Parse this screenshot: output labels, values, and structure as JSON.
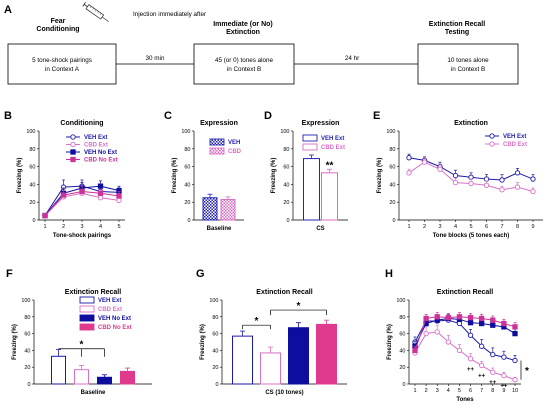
{
  "colors": {
    "veh_ext": "#1a1aa8",
    "cbd_ext": "#d970c8",
    "veh_no_ext": "#0d0d9e",
    "cbd_no_ext": "#cc3399",
    "veh": "#2323b0",
    "cbd": "#d86cc4",
    "pink_fill": "#e03a8f"
  },
  "panel_a": {
    "label": "A",
    "injection_note": "Injection immediately after",
    "syringe_icon": "syringe-icon",
    "stage1_title": "Fear\nConditioning",
    "stage1_box": "5 tone-shock pairings\nin Context A",
    "gap1": "30 min",
    "stage2_title": "Immediate (or No)\nExtinction",
    "stage2_box": "45 (or 0) tones alone\nin Context B",
    "gap2": "24 hr",
    "stage3_title": "Extinction Recall\nTesting",
    "stage3_box": "10 tones alone\nin Context B"
  },
  "chart_data": [
    {
      "panel": "B",
      "type": "line",
      "title": "Conditioning",
      "xlabel": "Tone-shock pairings",
      "ylabel": "Freezing (%)",
      "x": [
        1,
        2,
        3,
        4,
        5
      ],
      "ylim": [
        0,
        100
      ],
      "yticks": [
        0,
        20,
        40,
        60,
        80,
        100
      ],
      "legend": [
        "VEH Ext",
        "CBD Ext",
        "VEH No Ext",
        "CBD No Ext"
      ],
      "series": [
        {
          "name": "VEH Ext",
          "values": [
            5,
            37,
            38,
            32,
            31
          ],
          "err": [
            2,
            8,
            7,
            5,
            5
          ]
        },
        {
          "name": "CBD Ext",
          "values": [
            5,
            26,
            30,
            25,
            22
          ],
          "err": [
            2,
            5,
            5,
            5,
            4
          ]
        },
        {
          "name": "VEH No Ext",
          "values": [
            5,
            30,
            36,
            38,
            33
          ],
          "err": [
            2,
            6,
            6,
            6,
            5
          ]
        },
        {
          "name": "CBD No Ext",
          "values": [
            5,
            28,
            32,
            30,
            27
          ],
          "err": [
            2,
            5,
            6,
            5,
            5
          ]
        }
      ]
    },
    {
      "panel": "C",
      "type": "bar",
      "title": "Expression",
      "xlabel": "Baseline",
      "ylabel": "Freezing (%)",
      "ylim": [
        0,
        100
      ],
      "yticks": [
        0,
        20,
        40,
        60,
        80,
        100
      ],
      "legend": [
        "VEH",
        "CBD"
      ],
      "categories": [
        "VEH",
        "CBD"
      ],
      "values": [
        25,
        23
      ],
      "err": [
        4,
        3
      ]
    },
    {
      "panel": "D",
      "type": "bar",
      "title": "Expression",
      "xlabel": "CS",
      "ylabel": "Freezing (%)",
      "ylim": [
        0,
        100
      ],
      "yticks": [
        0,
        20,
        40,
        60,
        80,
        100
      ],
      "legend": [
        "VEH Ext",
        "CBD Ext"
      ],
      "categories": [
        "VEH Ext",
        "CBD Ext"
      ],
      "values": [
        69,
        53
      ],
      "err": [
        4,
        4
      ],
      "annotation": "**"
    },
    {
      "panel": "E",
      "type": "line",
      "title": "Extinction",
      "xlabel": "Tone blocks (5 tones each)",
      "ylabel": "Freezing (%)",
      "x": [
        1,
        2,
        3,
        4,
        5,
        6,
        7,
        8,
        9
      ],
      "ylim": [
        0,
        100
      ],
      "yticks": [
        0,
        20,
        40,
        60,
        80,
        100
      ],
      "legend": [
        "VEH Ext",
        "CBD Ext"
      ],
      "series": [
        {
          "name": "VEH Ext",
          "values": [
            70,
            67,
            60,
            50,
            48,
            46,
            45,
            53,
            46
          ],
          "err": [
            4,
            4,
            5,
            6,
            5,
            5,
            6,
            5,
            5
          ]
        },
        {
          "name": "CBD Ext",
          "values": [
            53,
            65,
            57,
            42,
            41,
            39,
            34,
            37,
            32
          ],
          "err": [
            4,
            5,
            6,
            5,
            5,
            5,
            4,
            5,
            4
          ]
        }
      ]
    },
    {
      "panel": "F",
      "type": "bar",
      "title": "Extinction Recall",
      "xlabel": "Baseline",
      "ylabel": "Freezing (%)",
      "ylim": [
        0,
        100
      ],
      "yticks": [
        0,
        20,
        40,
        60,
        80,
        100
      ],
      "legend": [
        "VEH Ext",
        "CBD Ext",
        "VEH No Ext",
        "CBD No Ext"
      ],
      "categories": [
        "VEH Ext",
        "CBD Ext",
        "VEH No Ext",
        "CBD No Ext"
      ],
      "values": [
        33,
        17,
        8,
        15
      ],
      "err": [
        8,
        5,
        3,
        4
      ],
      "annotation": "*"
    },
    {
      "panel": "G",
      "type": "bar",
      "title": "Extinction Recall",
      "xlabel": "CS (10 tones)",
      "ylabel": "Freezing (%)",
      "ylim": [
        0,
        100
      ],
      "yticks": [
        0,
        20,
        40,
        60,
        80,
        100
      ],
      "categories": [
        "VEH Ext",
        "CBD Ext",
        "VEH No Ext",
        "CBD No Ext"
      ],
      "values": [
        57,
        37,
        67,
        71
      ],
      "err": [
        6,
        7,
        6,
        5
      ],
      "annotations": [
        "*",
        "*"
      ]
    },
    {
      "panel": "H",
      "type": "line",
      "title": "Extinction Recall",
      "xlabel": "Tones",
      "ylabel": "Freezing (%)",
      "x": [
        1,
        2,
        3,
        4,
        5,
        6,
        7,
        8,
        9,
        10
      ],
      "ylim": [
        0,
        100
      ],
      "yticks": [
        0,
        20,
        40,
        60,
        80,
        100
      ],
      "series": [
        {
          "name": "VEH Ext",
          "values": [
            50,
            75,
            75,
            76,
            72,
            58,
            45,
            35,
            32,
            28
          ],
          "err": [
            6,
            5,
            5,
            5,
            6,
            7,
            8,
            8,
            7,
            6
          ]
        },
        {
          "name": "CBD Ext",
          "values": [
            37,
            60,
            62,
            50,
            40,
            30,
            22,
            14,
            10,
            5
          ],
          "err": [
            6,
            8,
            8,
            8,
            7,
            6,
            5,
            5,
            4,
            3
          ]
        },
        {
          "name": "VEH No Ext",
          "values": [
            45,
            72,
            76,
            78,
            77,
            73,
            72,
            70,
            68,
            60
          ],
          "err": [
            6,
            6,
            5,
            5,
            5,
            5,
            5,
            5,
            5,
            6
          ]
        },
        {
          "name": "CBD No Ext",
          "values": [
            40,
            78,
            80,
            79,
            80,
            79,
            78,
            76,
            72,
            68
          ],
          "err": [
            5,
            5,
            5,
            5,
            5,
            5,
            5,
            5,
            5,
            5
          ]
        }
      ],
      "annotations": {
        "tone_marks": "++",
        "marked_tones": [
          6,
          7,
          8,
          9
        ],
        "end": "*"
      }
    }
  ]
}
